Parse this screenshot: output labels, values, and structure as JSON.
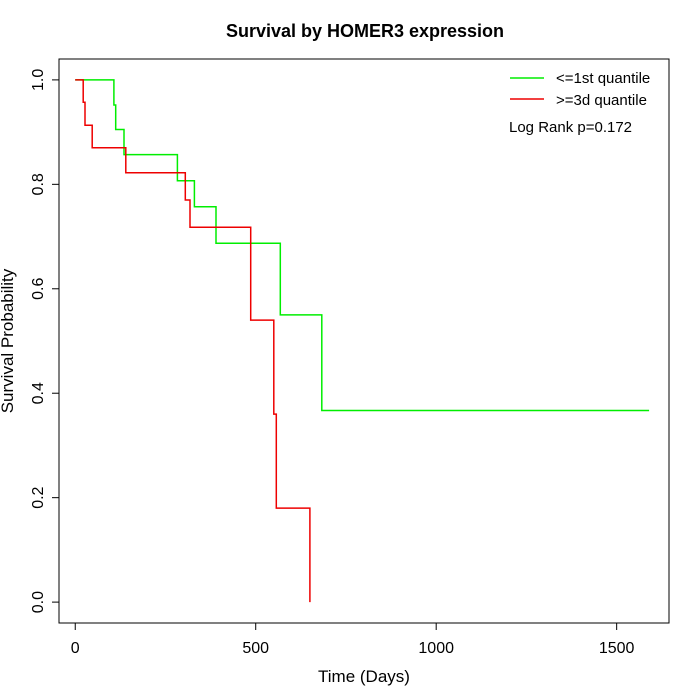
{
  "chart_data": {
    "type": "line",
    "title": "Survival by HOMER3 expression",
    "xlabel": "Time (Days)",
    "ylabel": "Survival Probability",
    "xlim": [
      -45,
      1645
    ],
    "ylim": [
      -0.04,
      1.04
    ],
    "x_ticks": [
      0,
      500,
      1000,
      1500
    ],
    "x_tick_labels": [
      "0",
      "500",
      "1000",
      "1500"
    ],
    "y_ticks": [
      0.0,
      0.2,
      0.4,
      0.6,
      0.8,
      1.0
    ],
    "y_tick_labels": [
      "0.0",
      "0.2",
      "0.4",
      "0.6",
      "0.8",
      "1.0"
    ],
    "grid": false,
    "legend_position": "top-right",
    "annotation": "Log Rank p=0.172",
    "series": [
      {
        "name": "<=1st quantile",
        "color": "#00ee00",
        "step": true,
        "points": [
          [
            0,
            1.0
          ],
          [
            107,
            1.0
          ],
          [
            107,
            0.952
          ],
          [
            112,
            0.952
          ],
          [
            112,
            0.905
          ],
          [
            135,
            0.905
          ],
          [
            135,
            0.857
          ],
          [
            283,
            0.857
          ],
          [
            283,
            0.807
          ],
          [
            330,
            0.807
          ],
          [
            330,
            0.757
          ],
          [
            390,
            0.757
          ],
          [
            390,
            0.687
          ],
          [
            568,
            0.687
          ],
          [
            568,
            0.55
          ],
          [
            683,
            0.55
          ],
          [
            683,
            0.367
          ],
          [
            1590,
            0.367
          ]
        ]
      },
      {
        "name": ">=3d quantile",
        "color": "#ee0000",
        "step": true,
        "points": [
          [
            0,
            1.0
          ],
          [
            22,
            1.0
          ],
          [
            22,
            0.957
          ],
          [
            27,
            0.957
          ],
          [
            27,
            0.913
          ],
          [
            47,
            0.913
          ],
          [
            47,
            0.87
          ],
          [
            140,
            0.87
          ],
          [
            140,
            0.822
          ],
          [
            305,
            0.822
          ],
          [
            305,
            0.77
          ],
          [
            318,
            0.77
          ],
          [
            318,
            0.718
          ],
          [
            486,
            0.718
          ],
          [
            486,
            0.54
          ],
          [
            550,
            0.54
          ],
          [
            550,
            0.36
          ],
          [
            557,
            0.36
          ],
          [
            557,
            0.18
          ],
          [
            650,
            0.18
          ],
          [
            650,
            0.0
          ]
        ]
      }
    ]
  }
}
